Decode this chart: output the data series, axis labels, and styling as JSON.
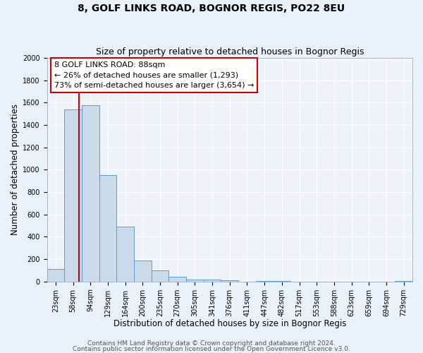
{
  "title": "8, GOLF LINKS ROAD, BOGNOR REGIS, PO22 8EU",
  "subtitle": "Size of property relative to detached houses in Bognor Regis",
  "xlabel": "Distribution of detached houses by size in Bognor Regis",
  "ylabel": "Number of detached properties",
  "bar_labels": [
    "23sqm",
    "58sqm",
    "94sqm",
    "129sqm",
    "164sqm",
    "200sqm",
    "235sqm",
    "270sqm",
    "305sqm",
    "341sqm",
    "376sqm",
    "411sqm",
    "447sqm",
    "482sqm",
    "517sqm",
    "553sqm",
    "588sqm",
    "623sqm",
    "659sqm",
    "694sqm",
    "729sqm"
  ],
  "bar_values": [
    110,
    1540,
    1580,
    950,
    490,
    190,
    100,
    40,
    20,
    15,
    10,
    0,
    5,
    5,
    0,
    0,
    0,
    0,
    0,
    0,
    5
  ],
  "bar_color": "#c9daea",
  "bar_edge_color": "#5b9bd5",
  "ylim": [
    0,
    2000
  ],
  "yticks": [
    0,
    200,
    400,
    600,
    800,
    1000,
    1200,
    1400,
    1600,
    1800,
    2000
  ],
  "property_value": 88,
  "red_line_color": "#cc0000",
  "annotation_line1": "8 GOLF LINKS ROAD: 88sqm",
  "annotation_line2": "← 26% of detached houses are smaller (1,293)",
  "annotation_line3": "73% of semi-detached houses are larger (3,654) →",
  "footer_line1": "Contains HM Land Registry data © Crown copyright and database right 2024.",
  "footer_line2": "Contains public sector information licensed under the Open Government Licence v3.0.",
  "bg_color": "#e8f1f8",
  "plot_bg_color": "#eef3fa",
  "grid_color": "#ffffff",
  "title_fontsize": 10,
  "subtitle_fontsize": 9,
  "xlabel_fontsize": 8.5,
  "ylabel_fontsize": 8.5,
  "tick_fontsize": 7,
  "annotation_fontsize": 8,
  "footer_fontsize": 6.5,
  "bin_edges": [
    23,
    58,
    94,
    129,
    164,
    200,
    235,
    270,
    305,
    341,
    376,
    411,
    447,
    482,
    517,
    553,
    588,
    623,
    659,
    694,
    729,
    764
  ]
}
